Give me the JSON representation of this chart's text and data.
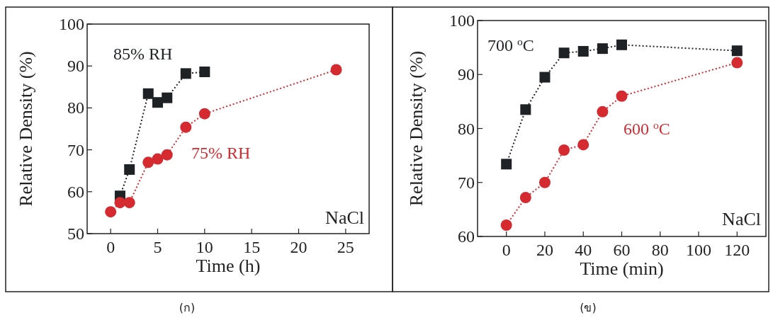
{
  "chart_data": [
    {
      "type": "line",
      "xlabel": "Time (h)",
      "ylabel": "Relative Density (%)",
      "xlim": [
        -2.5,
        27.5
      ],
      "ylim": [
        50,
        100
      ],
      "xticks": [
        0,
        5,
        10,
        15,
        20,
        25
      ],
      "yticks": [
        50,
        60,
        70,
        80,
        90,
        100
      ],
      "line_style": "dotted",
      "annotations": [
        "NaCl",
        "(ก)"
      ],
      "series": [
        {
          "name": "85% RH",
          "color": "#1e2224",
          "marker": "square",
          "x": [
            1,
            2,
            4,
            5,
            6,
            8,
            10
          ],
          "values": [
            59.0,
            65.3,
            83.4,
            81.3,
            82.4,
            88.2,
            88.6
          ]
        },
        {
          "name": "75% RH",
          "color": "#d42a30",
          "marker": "circle",
          "x": [
            0,
            1,
            2,
            4,
            5,
            6,
            8,
            10,
            24
          ],
          "values": [
            55.2,
            57.4,
            57.4,
            67.0,
            67.8,
            68.8,
            75.4,
            78.6,
            89.1
          ]
        }
      ]
    },
    {
      "type": "line",
      "xlabel": "Time (min)",
      "ylabel": "Relative Density (%)",
      "xlim": [
        -15,
        135
      ],
      "ylim": [
        60,
        100
      ],
      "xticks": [
        0,
        20,
        40,
        60,
        80,
        100,
        120
      ],
      "yticks": [
        60,
        70,
        80,
        90,
        100
      ],
      "line_style": "dotted",
      "annotations": [
        "NaCl",
        "(ข)"
      ],
      "series": [
        {
          "name": "700 $^{o}$C",
          "color": "#1e2224",
          "marker": "square",
          "x": [
            0,
            10,
            20,
            30,
            40,
            50,
            60,
            120
          ],
          "values": [
            73.4,
            83.5,
            89.5,
            94.0,
            94.3,
            94.8,
            95.5,
            94.4
          ]
        },
        {
          "name": "600 $^{o}$C",
          "color": "#d42a30",
          "marker": "circle",
          "x": [
            0,
            10,
            20,
            30,
            40,
            50,
            60,
            120
          ],
          "values": [
            62.1,
            67.2,
            70.0,
            76.0,
            77.0,
            83.1,
            86.0,
            92.2
          ]
        }
      ]
    }
  ]
}
